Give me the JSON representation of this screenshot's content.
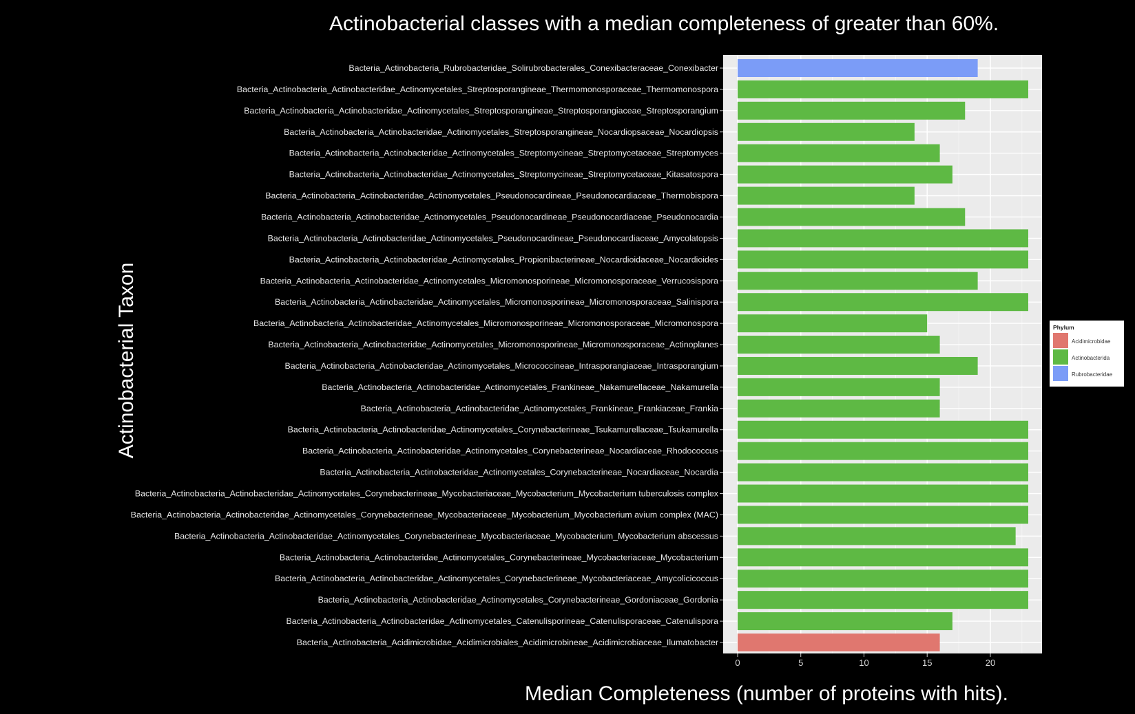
{
  "slide": {
    "title": "Actinobacterial classes with a median completeness of greater than 60%.",
    "x_title": "Median Completeness (number of proteins with hits).",
    "y_title": "Actinobacterial Taxon"
  },
  "colors": {
    "background": "#000000",
    "panel": "#ebebeb",
    "grid": "#ffffff",
    "Acidimicrobidae": "#e0776f",
    "Actinobacterida": "#5eb944",
    "Rubrobacteridae": "#7b9cf7"
  },
  "chart_data": {
    "type": "bar",
    "orientation": "horizontal",
    "xlabel": "",
    "ylabel": "",
    "xlim": [
      0,
      24
    ],
    "xticks": [
      0,
      5,
      10,
      15,
      20
    ],
    "grid": true,
    "legend": {
      "title": "Phylum",
      "position": "right",
      "entries": [
        "Acidimicrobidae",
        "Actinobacterida",
        "Rubrobacteridae"
      ]
    },
    "categories": [
      "Bacteria_Actinobacteria_Rubrobacteridae_Solirubrobacterales_Conexibacteraceae_Conexibacter",
      "Bacteria_Actinobacteria_Actinobacteridae_Actinomycetales_Streptosporangineae_Thermomonosporaceae_Thermomonospora",
      "Bacteria_Actinobacteria_Actinobacteridae_Actinomycetales_Streptosporangineae_Streptosporangiaceae_Streptosporangium",
      "Bacteria_Actinobacteria_Actinobacteridae_Actinomycetales_Streptosporangineae_Nocardiopsaceae_Nocardiopsis",
      "Bacteria_Actinobacteria_Actinobacteridae_Actinomycetales_Streptomycineae_Streptomycetaceae_Streptomyces",
      "Bacteria_Actinobacteria_Actinobacteridae_Actinomycetales_Streptomycineae_Streptomycetaceae_Kitasatospora",
      "Bacteria_Actinobacteria_Actinobacteridae_Actinomycetales_Pseudonocardineae_Pseudonocardiaceae_Thermobispora",
      "Bacteria_Actinobacteria_Actinobacteridae_Actinomycetales_Pseudonocardineae_Pseudonocardiaceae_Pseudonocardia",
      "Bacteria_Actinobacteria_Actinobacteridae_Actinomycetales_Pseudonocardineae_Pseudonocardiaceae_Amycolatopsis",
      "Bacteria_Actinobacteria_Actinobacteridae_Actinomycetales_Propionibacterineae_Nocardioidaceae_Nocardioides",
      "Bacteria_Actinobacteria_Actinobacteridae_Actinomycetales_Micromonosporineae_Micromonosporaceae_Verrucosispora",
      "Bacteria_Actinobacteria_Actinobacteridae_Actinomycetales_Micromonosporineae_Micromonosporaceae_Salinispora",
      "Bacteria_Actinobacteria_Actinobacteridae_Actinomycetales_Micromonosporineae_Micromonosporaceae_Micromonospora",
      "Bacteria_Actinobacteria_Actinobacteridae_Actinomycetales_Micromonosporineae_Micromonosporaceae_Actinoplanes",
      "Bacteria_Actinobacteria_Actinobacteridae_Actinomycetales_Micrococcineae_Intrasporangiaceae_Intrasporangium",
      "Bacteria_Actinobacteria_Actinobacteridae_Actinomycetales_Frankineae_Nakamurellaceae_Nakamurella",
      "Bacteria_Actinobacteria_Actinobacteridae_Actinomycetales_Frankineae_Frankiaceae_Frankia",
      "Bacteria_Actinobacteria_Actinobacteridae_Actinomycetales_Corynebacterineae_Tsukamurellaceae_Tsukamurella",
      "Bacteria_Actinobacteria_Actinobacteridae_Actinomycetales_Corynebacterineae_Nocardiaceae_Rhodococcus",
      "Bacteria_Actinobacteria_Actinobacteridae_Actinomycetales_Corynebacterineae_Nocardiaceae_Nocardia",
      "Bacteria_Actinobacteria_Actinobacteridae_Actinomycetales_Corynebacterineae_Mycobacteriaceae_Mycobacterium_Mycobacterium tuberculosis complex",
      "Bacteria_Actinobacteria_Actinobacteridae_Actinomycetales_Corynebacterineae_Mycobacteriaceae_Mycobacterium_Mycobacterium avium complex (MAC)",
      "Bacteria_Actinobacteria_Actinobacteridae_Actinomycetales_Corynebacterineae_Mycobacteriaceae_Mycobacterium_Mycobacterium abscessus",
      "Bacteria_Actinobacteria_Actinobacteridae_Actinomycetales_Corynebacterineae_Mycobacteriaceae_Mycobacterium",
      "Bacteria_Actinobacteria_Actinobacteridae_Actinomycetales_Corynebacterineae_Mycobacteriaceae_Amycolicicoccus",
      "Bacteria_Actinobacteria_Actinobacteridae_Actinomycetales_Corynebacterineae_Gordoniaceae_Gordonia",
      "Bacteria_Actinobacteria_Actinobacteridae_Actinomycetales_Catenulisporineae_Catenulisporaceae_Catenulispora",
      "Bacteria_Actinobacteria_Acidimicrobidae_Acidimicrobiales_Acidimicrobineae_Acidimicrobiaceae_Ilumatobacter"
    ],
    "values": [
      19,
      23,
      18,
      14,
      16,
      17,
      14,
      18,
      23,
      23,
      19,
      23,
      15,
      16,
      19,
      16,
      16,
      23,
      23,
      23,
      23,
      23,
      22,
      23,
      23,
      23,
      17,
      16
    ],
    "phylum": [
      "Rubrobacteridae",
      "Actinobacterida",
      "Actinobacterida",
      "Actinobacterida",
      "Actinobacterida",
      "Actinobacterida",
      "Actinobacterida",
      "Actinobacterida",
      "Actinobacterida",
      "Actinobacterida",
      "Actinobacterida",
      "Actinobacterida",
      "Actinobacterida",
      "Actinobacterida",
      "Actinobacterida",
      "Actinobacterida",
      "Actinobacterida",
      "Actinobacterida",
      "Actinobacterida",
      "Actinobacterida",
      "Actinobacterida",
      "Actinobacterida",
      "Actinobacterida",
      "Actinobacterida",
      "Actinobacterida",
      "Actinobacterida",
      "Actinobacterida",
      "Acidimicrobidae"
    ]
  }
}
